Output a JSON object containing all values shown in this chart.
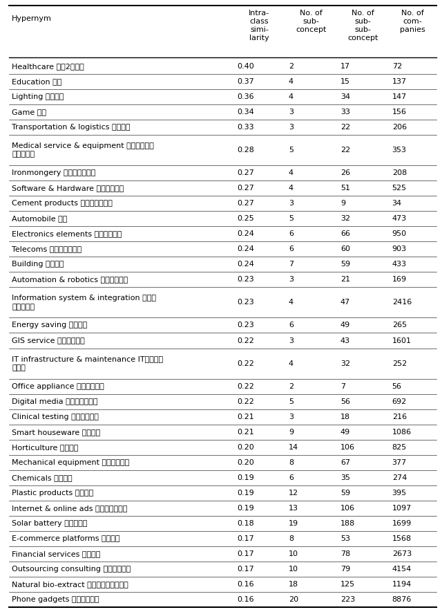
{
  "col_headers": [
    "Hypernym",
    "Intra-\nclass\nsimi-\nlarity",
    "No. of\nsub-\nconcept",
    "No. of\nsub-\nsub-\nconcept",
    "No. of\ncom-\npanies"
  ],
  "rows": [
    [
      "Healthcare 医疗2断服务",
      "0.40",
      "2",
      "17",
      "72"
    ],
    [
      "Education 教育",
      "0.37",
      "4",
      "15",
      "137"
    ],
    [
      "Lighting 照明灯具",
      "0.36",
      "4",
      "34",
      "147"
    ],
    [
      "Game 游戏",
      "0.34",
      "3",
      "33",
      "156"
    ],
    [
      "Transportation & logistics 物流运输",
      "0.33",
      "3",
      "22",
      "206"
    ],
    [
      "Medical service & equipment 医疗器械制造与医疗服务",
      "0.28",
      "5",
      "22",
      "353"
    ],
    [
      "Ironmongery 金属零部件制造",
      "0.27",
      "4",
      "26",
      "208"
    ],
    [
      "Software & Hardware 第三方软硬件",
      "0.27",
      "4",
      "51",
      "525"
    ],
    [
      "Cement products 金属混凝土产品",
      "0.27",
      "3",
      "9",
      "34"
    ],
    [
      "Automobile 汽车",
      "0.25",
      "5",
      "32",
      "473"
    ],
    [
      "Electronics elements 电子原件制造",
      "0.24",
      "6",
      "66",
      "950"
    ],
    [
      "Telecoms 通信及通信设备",
      "0.24",
      "6",
      "60",
      "903"
    ],
    [
      "Building 建筑工程",
      "0.24",
      "7",
      "59",
      "433"
    ],
    [
      "Automation & robotics 自动化机器人",
      "0.23",
      "3",
      "21",
      "169"
    ],
    [
      "Information system & integration 信息系统集成服务",
      "0.23",
      "4",
      "47",
      "2416"
    ],
    [
      "Energy saving 节能环保",
      "0.23",
      "6",
      "49",
      "265"
    ],
    [
      "GIS service 地理信息服务",
      "0.22",
      "3",
      "43",
      "1601"
    ],
    [
      "IT infrastructure & maintenance IT基础设施与运维",
      "0.22",
      "4",
      "32",
      "252"
    ],
    [
      "Office appliance 日常办公用品",
      "0.22",
      "2",
      "7",
      "56"
    ],
    [
      "Digital media 互联网数字媒体",
      "0.22",
      "5",
      "56",
      "692"
    ],
    [
      "Clinical testing 临床试验检测",
      "0.21",
      "3",
      "18",
      "216"
    ],
    [
      "Smart houseware 智能家居",
      "0.21",
      "9",
      "49",
      "1086"
    ],
    [
      "Horticulture 园林工程",
      "0.20",
      "14",
      "106",
      "825"
    ],
    [
      "Mechanical equipment 机械设备制造",
      "0.20",
      "8",
      "67",
      "377"
    ],
    [
      "Chemicals 化工产品",
      "0.19",
      "6",
      "35",
      "274"
    ],
    [
      "Plastic products 塑料制品",
      "0.19",
      "12",
      "59",
      "395"
    ],
    [
      "Internet & online ads 互联网媒体广告",
      "0.19",
      "13",
      "106",
      "1097"
    ],
    [
      "Solar battery 太阳能电池",
      "0.18",
      "19",
      "188",
      "1699"
    ],
    [
      "E-commerce platforms 电商平台",
      "0.17",
      "8",
      "53",
      "1568"
    ],
    [
      "Financial services 金融服务",
      "0.17",
      "10",
      "78",
      "2673"
    ],
    [
      "Outsourcing consulting 工程和咒承包",
      "0.17",
      "10",
      "79",
      "4154"
    ],
    [
      "Natural bio-extract 天然植物提取物产品",
      "0.16",
      "18",
      "125",
      "1194"
    ],
    [
      "Phone gadgets 手机周边产品",
      "0.16",
      "20",
      "223",
      "8876"
    ]
  ],
  "row_lines_above": [
    5,
    6,
    14,
    15,
    17,
    18
  ],
  "two_line_rows": [
    5,
    14,
    17
  ],
  "hypernym_col_wrap": {
    "5": "Medical service & equipment 医疗器械制造\n与医疗服务",
    "14": "Information system & integration 信息系\n统集成服务",
    "17": "IT infrastructure & maintenance IT基础设施\n与运维"
  }
}
